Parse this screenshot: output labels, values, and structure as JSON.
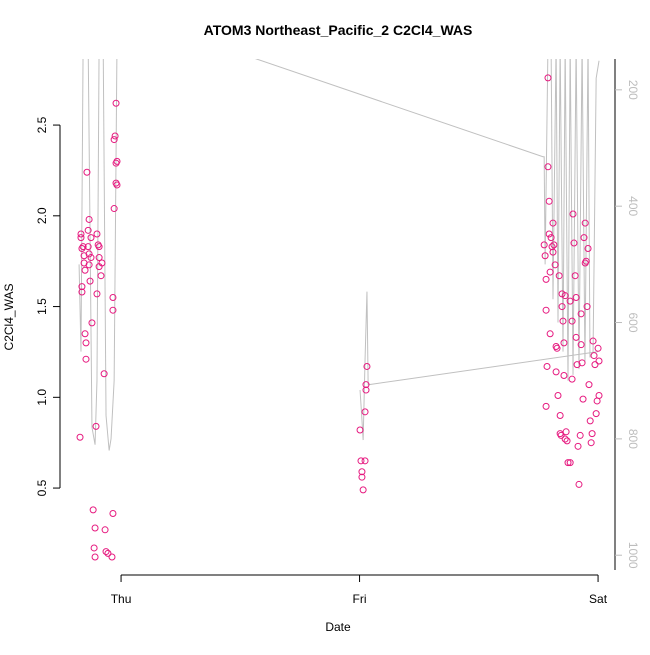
{
  "chart_data": {
    "type": "scatter",
    "title": "ATOM3 Northeast_Pacific_2 C2Cl4_WAS",
    "xlabel": "Date",
    "ylabel": "C2Cl4_WAS",
    "xlim": [
      -0.256,
      2.071
    ],
    "xticks": [
      {
        "value": 0,
        "label": "Thu"
      },
      {
        "value": 1,
        "label": "Fri"
      },
      {
        "value": 2,
        "label": "Sat"
      }
    ],
    "ylim": [
      0.021,
      2.864
    ],
    "yticks": [
      0.5,
      {
        "value": 1,
        "label": "1.0"
      },
      1.5,
      {
        "value": 2,
        "label": "2.0"
      },
      2.5
    ],
    "y2lim": [
      1034,
      147
    ],
    "y2ticks": [
      200,
      400,
      600,
      800,
      1000
    ],
    "series": [
      {
        "type": "scatter",
        "color": "#e6197f",
        "x": [
          -0.172,
          -0.168,
          -0.168,
          -0.164,
          -0.164,
          -0.164,
          -0.155,
          -0.155,
          -0.151,
          -0.147,
          -0.147,
          -0.143,
          -0.138,
          -0.138,
          -0.134,
          -0.134,
          -0.13,
          -0.126,
          -0.122,
          -0.117,
          -0.113,
          -0.109,
          -0.109,
          -0.105,
          -0.101,
          -0.101,
          -0.096,
          -0.092,
          -0.092,
          -0.084,
          -0.08,
          -0.071,
          -0.067,
          -0.063,
          -0.055,
          -0.038,
          -0.034,
          -0.034,
          -0.034,
          -0.029,
          -0.029,
          -0.025,
          -0.021,
          -0.021,
          -0.017,
          -0.021,
          -0.017,
          -0.159,
          -0.151,
          -0.134,
          -0.092,
          -0.126,
          1.002,
          1.006,
          1.01,
          1.01,
          1.015,
          1.023,
          1.023,
          1.027,
          1.027,
          1.031,
          1.774,
          1.778,
          1.782,
          1.782,
          1.782,
          1.786,
          1.79,
          1.79,
          1.795,
          1.795,
          1.799,
          1.799,
          1.803,
          1.807,
          1.811,
          1.815,
          1.82,
          1.824,
          1.824,
          1.828,
          1.832,
          1.837,
          1.841,
          1.841,
          1.845,
          1.849,
          1.849,
          1.853,
          1.857,
          1.857,
          1.862,
          1.866,
          1.87,
          1.874,
          1.883,
          1.891,
          1.891,
          1.895,
          1.899,
          1.904,
          1.908,
          1.912,
          1.916,
          1.92,
          1.925,
          1.929,
          1.933,
          1.937,
          1.941,
          1.946,
          1.946,
          1.95,
          1.954,
          1.958,
          1.962,
          1.967,
          1.971,
          1.975,
          1.979,
          1.983,
          1.987,
          1.992,
          1.996,
          2.0,
          2.004,
          2.004,
          1.908,
          1.883,
          1.862,
          1.811,
          1.929
        ],
        "values": [
          0.78,
          1.88,
          1.9,
          1.82,
          1.61,
          1.58,
          1.78,
          1.74,
          1.35,
          1.21,
          1.3,
          2.24,
          1.92,
          1.83,
          1.98,
          1.73,
          1.64,
          1.88,
          1.41,
          0.38,
          0.17,
          0.12,
          0.28,
          0.84,
          1.57,
          1.9,
          1.84,
          1.77,
          1.72,
          1.67,
          1.74,
          1.13,
          0.27,
          0.15,
          0.14,
          0.12,
          0.36,
          1.55,
          1.48,
          2.04,
          2.42,
          2.44,
          2.62,
          2.29,
          2.3,
          2.18,
          2.17,
          1.83,
          1.7,
          1.79,
          1.83,
          1.77,
          0.82,
          0.65,
          0.59,
          0.56,
          0.49,
          0.65,
          0.92,
          1.07,
          1.04,
          1.17,
          1.84,
          1.78,
          1.65,
          0.95,
          1.48,
          1.17,
          2.76,
          2.27,
          2.08,
          1.9,
          1.69,
          1.35,
          1.88,
          1.83,
          1.96,
          1.84,
          1.73,
          1.28,
          1.14,
          1.27,
          1.01,
          1.67,
          0.9,
          0.8,
          0.79,
          1.57,
          1.5,
          1.42,
          1.3,
          1.12,
          0.77,
          0.81,
          0.76,
          0.64,
          0.64,
          1.42,
          1.1,
          2.01,
          1.85,
          1.67,
          1.33,
          1.18,
          0.73,
          0.52,
          0.79,
          1.29,
          1.19,
          0.99,
          1.88,
          1.96,
          1.74,
          1.75,
          1.5,
          1.82,
          1.07,
          0.87,
          0.75,
          0.8,
          1.31,
          1.23,
          1.18,
          0.91,
          0.98,
          1.27,
          1.2,
          1.01,
          1.55,
          1.53,
          1.56,
          1.8,
          1.46
        ]
      },
      {
        "type": "line",
        "axis": "y2",
        "color": "#c0c0c0",
        "x": [
          -0.176,
          -0.168,
          -0.159,
          -0.138,
          -0.122,
          -0.109,
          -0.101,
          -0.092,
          -0.075,
          -0.063,
          -0.05,
          -0.042,
          -0.029,
          -0.017,
          -0.004,
          1.769,
          1.774,
          1.778,
          1.79,
          1.803,
          1.811,
          1.824,
          1.832,
          1.841,
          1.853,
          1.862,
          1.874,
          1.883,
          1.895,
          1.908,
          1.92,
          1.933,
          1.945,
          1.958,
          1.966,
          1.979,
          1.992,
          2.004,
          null,
          1.002,
          1.01,
          1.015,
          1.023,
          1.031,
          1.036,
          2.0
        ],
        "values": [
          500,
          650,
          120,
          120,
          780,
          810,
          700,
          120,
          120,
          760,
          820,
          800,
          700,
          120,
          67,
          315,
          315,
          500,
          120,
          120,
          560,
          120,
          600,
          120,
          650,
          120,
          700,
          120,
          690,
          120,
          680,
          120,
          670,
          120,
          660,
          650,
          180,
          150,
          null,
          716,
          767,
          802,
          664,
          547,
          707,
          650
        ]
      }
    ]
  }
}
